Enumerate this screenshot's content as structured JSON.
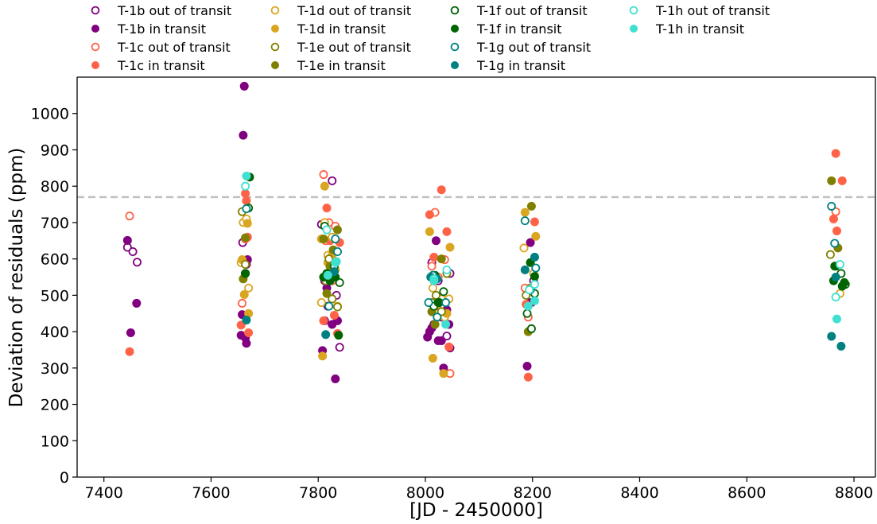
{
  "chart_data": {
    "type": "scatter",
    "xlabel": "[JD - 2450000]",
    "ylabel": "Deviation of residuals (ppm)",
    "xlim": [
      7350,
      8840
    ],
    "ylim": [
      0,
      1100
    ],
    "xticks": [
      7400,
      7600,
      7800,
      8000,
      8200,
      8400,
      8600,
      8800
    ],
    "yticks": [
      0,
      100,
      200,
      300,
      400,
      500,
      600,
      700,
      800,
      900,
      1000
    ],
    "reference_line": {
      "y": 770,
      "style": "dashed",
      "color": "#bfbfbf"
    },
    "legend": {
      "placement": "top, above plot",
      "columns": 4
    },
    "colors": {
      "T-1b": "#800080",
      "T-1c": "#ff6347",
      "T-1d": "#daa520",
      "T-1e": "#808000",
      "T-1f": "#006400",
      "T-1g": "#008080",
      "T-1h": "#40e0d0"
    },
    "series": [
      {
        "name": "T-1b out of transit",
        "planet": "T-1b",
        "filled": false,
        "points": [
          [
            7444,
            632
          ],
          [
            7454,
            620
          ],
          [
            7462,
            591
          ],
          [
            7659,
            645
          ],
          [
            7664,
            560
          ],
          [
            7666,
            585
          ],
          [
            7806,
            695
          ],
          [
            7812,
            540
          ],
          [
            7818,
            470
          ],
          [
            7826,
            815
          ],
          [
            7834,
            500
          ],
          [
            7840,
            357
          ],
          [
            8012,
            590
          ],
          [
            8018,
            460
          ],
          [
            8024,
            540
          ],
          [
            8030,
            440
          ],
          [
            8040,
            388
          ],
          [
            8046,
            560
          ],
          [
            8196,
            480
          ],
          [
            8202,
            540
          ]
        ]
      },
      {
        "name": "T-1b in transit",
        "planet": "T-1b",
        "filled": true,
        "points": [
          [
            7444,
            651
          ],
          [
            7450,
            397
          ],
          [
            7461,
            478
          ],
          [
            7656,
            390
          ],
          [
            7658,
            447
          ],
          [
            7660,
            940
          ],
          [
            7662,
            1075
          ],
          [
            7664,
            383
          ],
          [
            7666,
            368
          ],
          [
            7668,
            598
          ],
          [
            7808,
            348
          ],
          [
            7812,
            430
          ],
          [
            7816,
            520
          ],
          [
            7826,
            420
          ],
          [
            7832,
            270
          ],
          [
            7836,
            430
          ],
          [
            8004,
            385
          ],
          [
            8008,
            400
          ],
          [
            8012,
            410
          ],
          [
            8016,
            420
          ],
          [
            8020,
            650
          ],
          [
            8024,
            375
          ],
          [
            8030,
            375
          ],
          [
            8034,
            300
          ],
          [
            8040,
            460
          ],
          [
            8044,
            420
          ],
          [
            8046,
            355
          ],
          [
            8190,
            305
          ],
          [
            8196,
            645
          ],
          [
            8198,
            480
          ]
        ]
      },
      {
        "name": "T-1c out of transit",
        "planet": "T-1c",
        "filled": false,
        "points": [
          [
            7448,
            718
          ],
          [
            7658,
            478
          ],
          [
            7664,
            655
          ],
          [
            7810,
            832
          ],
          [
            7814,
            650
          ],
          [
            7820,
            700
          ],
          [
            7826,
            540
          ],
          [
            7832,
            690
          ],
          [
            8012,
            580
          ],
          [
            8018,
            728
          ],
          [
            8024,
            550
          ],
          [
            8036,
            598
          ],
          [
            8046,
            285
          ],
          [
            8186,
            520
          ],
          [
            8192,
            440
          ],
          [
            8766,
            730
          ]
        ]
      },
      {
        "name": "T-1c in transit",
        "planet": "T-1c",
        "filled": true,
        "points": [
          [
            7448,
            345
          ],
          [
            7656,
            418
          ],
          [
            7664,
            780
          ],
          [
            7666,
            760
          ],
          [
            7668,
            660
          ],
          [
            7670,
            397
          ],
          [
            7810,
            430
          ],
          [
            7816,
            740
          ],
          [
            7822,
            650
          ],
          [
            7830,
            445
          ],
          [
            7836,
            395
          ],
          [
            7840,
            645
          ],
          [
            8008,
            722
          ],
          [
            8016,
            605
          ],
          [
            8030,
            790
          ],
          [
            8040,
            675
          ],
          [
            8044,
            358
          ],
          [
            8188,
            475
          ],
          [
            8192,
            275
          ],
          [
            8204,
            702
          ],
          [
            8762,
            710
          ],
          [
            8766,
            890
          ],
          [
            8768,
            677
          ],
          [
            8778,
            815
          ]
        ]
      },
      {
        "name": "T-1d out of transit",
        "planet": "T-1d",
        "filled": false,
        "points": [
          [
            7656,
            590
          ],
          [
            7660,
            700
          ],
          [
            7666,
            710
          ],
          [
            7670,
            520
          ],
          [
            7806,
            480
          ],
          [
            7812,
            700
          ],
          [
            7818,
            610
          ],
          [
            7826,
            660
          ],
          [
            7836,
            470
          ],
          [
            8014,
            520
          ],
          [
            8020,
            460
          ],
          [
            8030,
            490
          ],
          [
            8036,
            440
          ],
          [
            8044,
            490
          ],
          [
            8184,
            630
          ],
          [
            8196,
            520
          ],
          [
            8202,
            560
          ],
          [
            8774,
            505
          ]
        ]
      },
      {
        "name": "T-1d in transit",
        "planet": "T-1d",
        "filled": true,
        "points": [
          [
            7658,
            598
          ],
          [
            7662,
            502
          ],
          [
            7668,
            698
          ],
          [
            7670,
            450
          ],
          [
            7806,
            655
          ],
          [
            7808,
            333
          ],
          [
            7812,
            800
          ],
          [
            7818,
            590
          ],
          [
            7826,
            610
          ],
          [
            7832,
            570
          ],
          [
            8008,
            675
          ],
          [
            8014,
            327
          ],
          [
            8022,
            470
          ],
          [
            8034,
            285
          ],
          [
            8040,
            450
          ],
          [
            8046,
            632
          ],
          [
            8186,
            728
          ],
          [
            8206,
            662
          ]
        ]
      },
      {
        "name": "T-1e out of transit",
        "planet": "T-1e",
        "filled": false,
        "points": [
          [
            7658,
            730
          ],
          [
            7664,
            585
          ],
          [
            7814,
            540
          ],
          [
            7820,
            600
          ],
          [
            7826,
            490
          ],
          [
            7836,
            468
          ],
          [
            8012,
            480
          ],
          [
            8020,
            500
          ],
          [
            8030,
            455
          ],
          [
            8040,
            560
          ],
          [
            8188,
            500
          ],
          [
            8196,
            520
          ],
          [
            8756,
            612
          ]
        ]
      },
      {
        "name": "T-1e in transit",
        "planet": "T-1e",
        "filled": true,
        "points": [
          [
            7660,
            545
          ],
          [
            7664,
            658
          ],
          [
            7810,
            655
          ],
          [
            7816,
            505
          ],
          [
            7822,
            580
          ],
          [
            7828,
            625
          ],
          [
            7836,
            680
          ],
          [
            8012,
            455
          ],
          [
            8018,
            420
          ],
          [
            8030,
            600
          ],
          [
            8192,
            400
          ],
          [
            8198,
            745
          ],
          [
            8758,
            815
          ],
          [
            8770,
            630
          ]
        ]
      },
      {
        "name": "T-1f out of transit",
        "planet": "T-1f",
        "filled": false,
        "points": [
          [
            7670,
            740
          ],
          [
            7812,
            690
          ],
          [
            7822,
            550
          ],
          [
            7830,
            580
          ],
          [
            7840,
            535
          ],
          [
            8016,
            470
          ],
          [
            8026,
            480
          ],
          [
            8034,
            510
          ],
          [
            8190,
            450
          ],
          [
            8198,
            408
          ],
          [
            8204,
            505
          ],
          [
            8764,
            580
          ],
          [
            8776,
            560
          ],
          [
            8784,
            530
          ]
        ]
      },
      {
        "name": "T-1f in transit",
        "planet": "T-1f",
        "filled": true,
        "points": [
          [
            7664,
            560
          ],
          [
            7672,
            825
          ],
          [
            7810,
            550
          ],
          [
            7816,
            560
          ],
          [
            7822,
            540
          ],
          [
            7832,
            550
          ],
          [
            7838,
            390
          ],
          [
            8018,
            555
          ],
          [
            8024,
            480
          ],
          [
            8196,
            590
          ],
          [
            8204,
            552
          ],
          [
            8762,
            540
          ],
          [
            8766,
            580
          ],
          [
            8778,
            525
          ],
          [
            8782,
            535
          ]
        ]
      },
      {
        "name": "T-1g out of transit",
        "planet": "T-1g",
        "filled": false,
        "points": [
          [
            7666,
            738
          ],
          [
            7820,
            470
          ],
          [
            7832,
            655
          ],
          [
            7836,
            620
          ],
          [
            8006,
            480
          ],
          [
            8014,
            555
          ],
          [
            8022,
            440
          ],
          [
            8038,
            480
          ],
          [
            8186,
            705
          ],
          [
            8196,
            515
          ],
          [
            8206,
            575
          ],
          [
            8758,
            745
          ],
          [
            8764,
            643
          ]
        ]
      },
      {
        "name": "T-1g in transit",
        "planet": "T-1g",
        "filled": true,
        "points": [
          [
            7666,
            432
          ],
          [
            7814,
            392
          ],
          [
            7830,
            565
          ],
          [
            8010,
            550
          ],
          [
            8022,
            545
          ],
          [
            8186,
            570
          ],
          [
            8204,
            605
          ],
          [
            8758,
            387
          ],
          [
            8766,
            550
          ],
          [
            8776,
            360
          ]
        ]
      },
      {
        "name": "T-1h out of transit",
        "planet": "T-1h",
        "filled": false,
        "points": [
          [
            7664,
            800
          ],
          [
            7816,
            680
          ],
          [
            7832,
            590
          ],
          [
            8016,
            545
          ],
          [
            8040,
            570
          ],
          [
            8194,
            515
          ],
          [
            8204,
            530
          ],
          [
            8766,
            495
          ],
          [
            8774,
            585
          ]
        ]
      },
      {
        "name": "T-1h in transit",
        "planet": "T-1h",
        "filled": true,
        "points": [
          [
            7666,
            828
          ],
          [
            7818,
            555
          ],
          [
            7834,
            593
          ],
          [
            8016,
            540
          ],
          [
            8038,
            420
          ],
          [
            8192,
            470
          ],
          [
            8204,
            485
          ],
          [
            8768,
            435
          ]
        ]
      }
    ]
  }
}
